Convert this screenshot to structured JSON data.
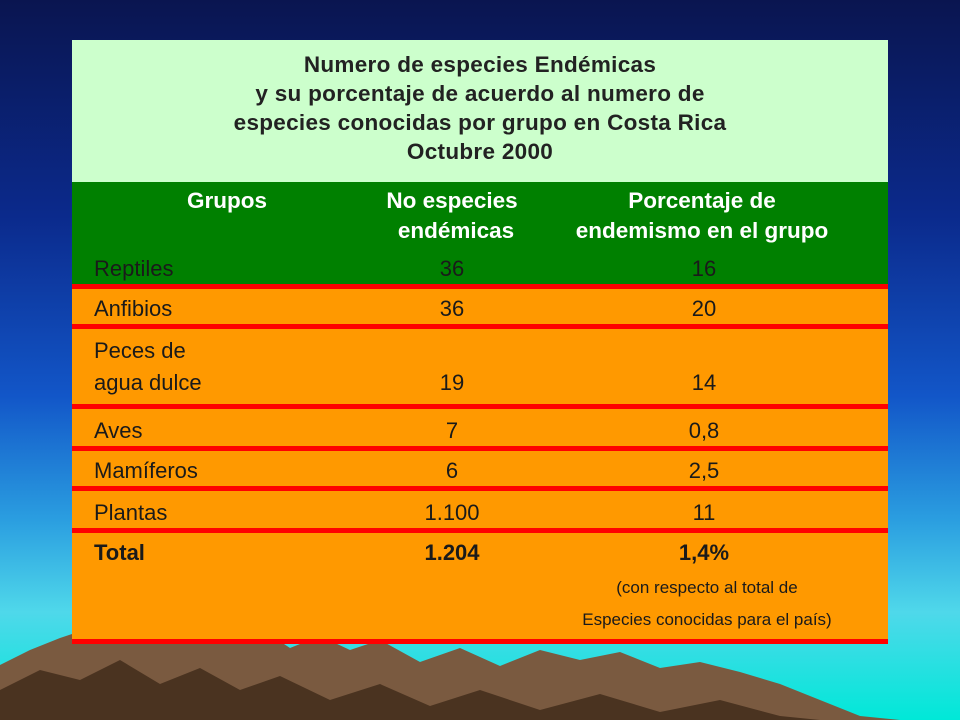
{
  "title": {
    "lines": [
      "Numero de especies Endémicas",
      "y su porcentaje de acuerdo al numero de",
      "especies conocidas por grupo en Costa Rica",
      "Octubre 2000"
    ]
  },
  "headers": {
    "grupos": "Grupos",
    "especies_line1": "No especies",
    "especies_line2": "endémicas",
    "porcentaje_line1": "Porcentaje de",
    "porcentaje_line2": "endemismo en el grupo"
  },
  "rows": [
    {
      "grupo": "Reptiles",
      "especies": "36",
      "porcentaje": "16"
    },
    {
      "grupo": "Anfibios",
      "especies": "36",
      "porcentaje": "20"
    },
    {
      "grupo_line1": "Peces de",
      "grupo_line2": "agua dulce",
      "especies": "19",
      "porcentaje": "14"
    },
    {
      "grupo": "Aves",
      "especies": "7",
      "porcentaje": "0,8"
    },
    {
      "grupo": "Mamíferos",
      "especies": "6",
      "porcentaje": "2,5"
    },
    {
      "grupo": "Plantas",
      "especies": "1.100",
      "porcentaje": "11"
    }
  ],
  "total": {
    "label": "Total",
    "especies": "1.204",
    "porcentaje": "1,4%",
    "note_line1": "(con respecto al total de",
    "note_line2": "Especies conocidas para el país)"
  },
  "colors": {
    "title_bg": "#ccffcc",
    "header_bg": "#008000",
    "row_bg": "#ff9900",
    "separator": "#ff0000"
  }
}
